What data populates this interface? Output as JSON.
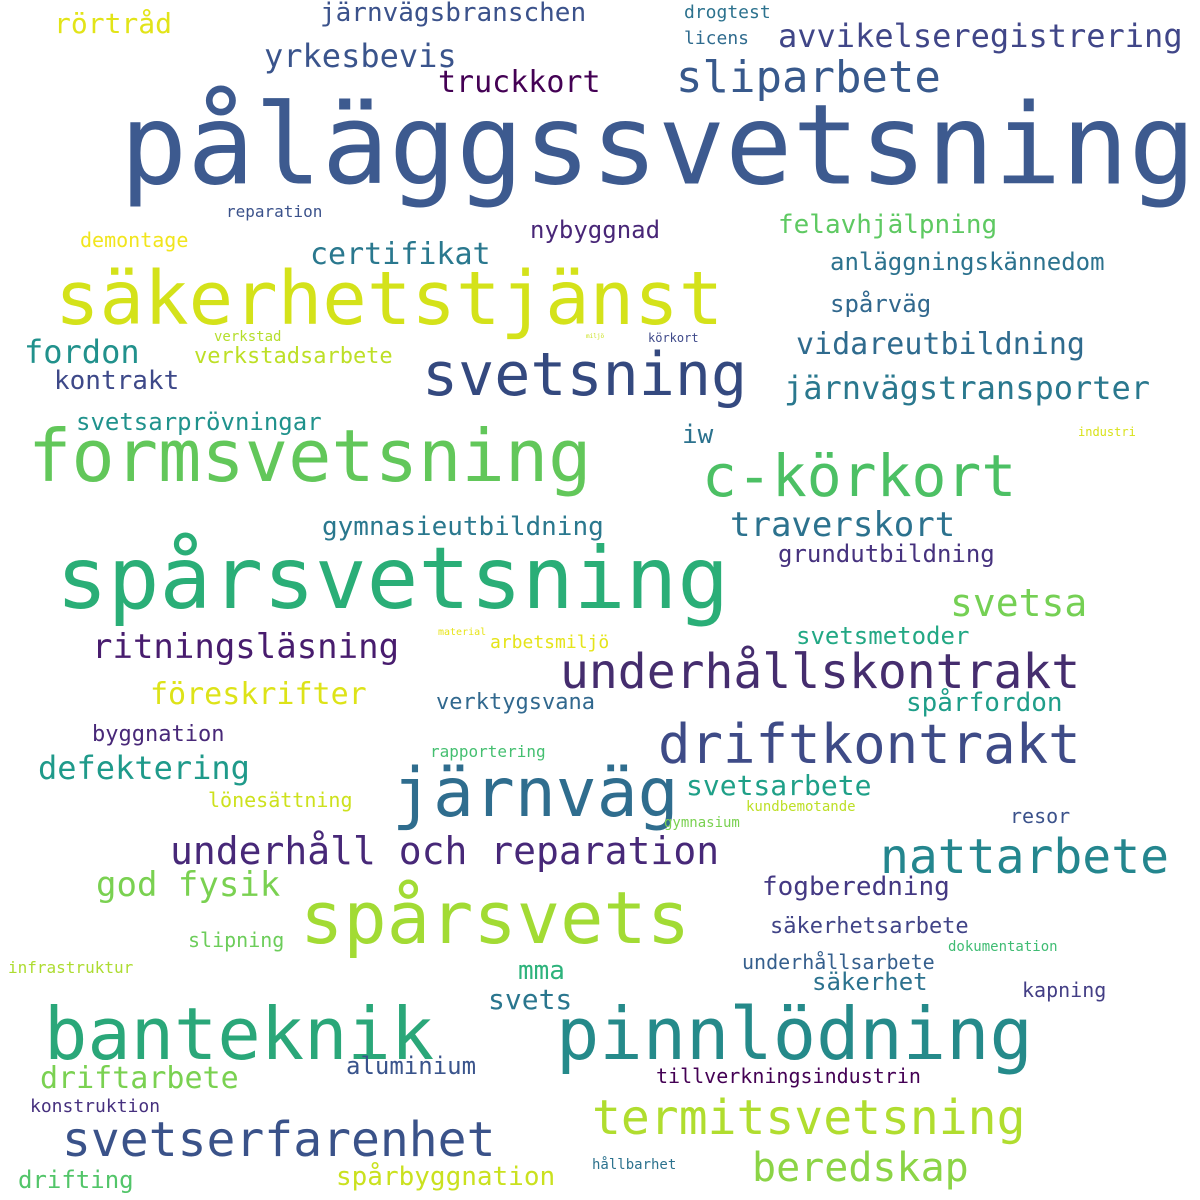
{
  "words": [
    {
      "text": "påläggssvetsning",
      "color": "#3d5a8f"
    },
    {
      "text": "säkerhetstjänst",
      "color": "#d4e21a"
    },
    {
      "text": "svetsning",
      "color": "#34497f"
    },
    {
      "text": "formsvetsning",
      "color": "#62c75a"
    },
    {
      "text": "c-körkort",
      "color": "#4cc064"
    },
    {
      "text": "spårsvetsning",
      "color": "#2aae77"
    },
    {
      "text": "underhållskontrakt",
      "color": "#452d6e"
    },
    {
      "text": "driftkontrakt",
      "color": "#3e4b87"
    },
    {
      "text": "järnväg",
      "color": "#2f6d8e"
    },
    {
      "text": "nattarbete",
      "color": "#24868e"
    },
    {
      "text": "spårsvets",
      "color": "#a2db34"
    },
    {
      "text": "banteknik",
      "color": "#2aa779"
    },
    {
      "text": "pinnlödning",
      "color": "#258a8a"
    },
    {
      "text": "svetserfarenhet",
      "color": "#3a5289"
    },
    {
      "text": "termitsvetsning",
      "color": "#b0dd2f"
    },
    {
      "text": "beredskap",
      "color": "#8bd446"
    },
    {
      "text": "sliparbete",
      "color": "#38598c"
    },
    {
      "text": "underhåll och reparation",
      "color": "#472878"
    },
    {
      "text": "svetsa",
      "color": "#75d054"
    },
    {
      "text": "ritningsläsning",
      "color": "#481c6e"
    },
    {
      "text": "järnvägstransporter",
      "color": "#2a788e"
    },
    {
      "text": "traverskort",
      "color": "#2c728e"
    },
    {
      "text": "vidareutbildning",
      "color": "#2f6b8e"
    },
    {
      "text": "yrkesbevis",
      "color": "#3a548c"
    },
    {
      "text": "avvikelseregistrering",
      "color": "#404688"
    },
    {
      "text": "järnvägsbranschen",
      "color": "#3b528b"
    },
    {
      "text": "truckkort",
      "color": "#440154"
    },
    {
      "text": "rörtråd",
      "color": "#e2e418"
    },
    {
      "text": "drogtest",
      "color": "#2c728e"
    },
    {
      "text": "licens",
      "color": "#2f6b8e"
    },
    {
      "text": "certifikat",
      "color": "#2a788e"
    },
    {
      "text": "fordon",
      "color": "#21918c"
    },
    {
      "text": "kontrakt",
      "color": "#3e4989"
    },
    {
      "text": "verkstadsarbete",
      "color": "#bddf26"
    },
    {
      "text": "svetsarprövningar",
      "color": "#20928c"
    },
    {
      "text": "felavhjälpning",
      "color": "#5ec962"
    },
    {
      "text": "anläggningskännedom",
      "color": "#2c728e"
    },
    {
      "text": "spårväg",
      "color": "#31688e"
    },
    {
      "text": "nybyggnad",
      "color": "#482677"
    },
    {
      "text": "demontage",
      "color": "#f1e51d"
    },
    {
      "text": "reparation",
      "color": "#3b528b"
    },
    {
      "text": "verkstad",
      "color": "#b5de2b"
    },
    {
      "text": "körkort",
      "color": "#3e4989"
    },
    {
      "text": "miljö",
      "color": "#cae11f"
    },
    {
      "text": "iw",
      "color": "#2c728e"
    },
    {
      "text": "industri",
      "color": "#d8e219"
    },
    {
      "text": "gymnasieutbildning",
      "color": "#2a788e"
    },
    {
      "text": "grundutbildning",
      "color": "#46327e"
    },
    {
      "text": "svetsmetoder",
      "color": "#22a884"
    },
    {
      "text": "föreskrifter",
      "color": "#dde318"
    },
    {
      "text": "arbetsmiljö",
      "color": "#e5e419"
    },
    {
      "text": "material",
      "color": "#e7e419"
    },
    {
      "text": "verktygsvana",
      "color": "#31688e"
    },
    {
      "text": "spårfordon",
      "color": "#1f9e89"
    },
    {
      "text": "byggnation",
      "color": "#482878"
    },
    {
      "text": "defektering",
      "color": "#1f9a8a"
    },
    {
      "text": "rapportering",
      "color": "#44bf70"
    },
    {
      "text": "lönesättning",
      "color": "#cde11d"
    },
    {
      "text": "svetsarbete",
      "color": "#1fa088"
    },
    {
      "text": "kundbemotande",
      "color": "#bddf26"
    },
    {
      "text": "gymnasium",
      "color": "#7ad151"
    },
    {
      "text": "resor",
      "color": "#3b528b"
    },
    {
      "text": "god fysik",
      "color": "#7ad151"
    },
    {
      "text": "fogberedning",
      "color": "#443983"
    },
    {
      "text": "säkerhetsarbete",
      "color": "#414487"
    },
    {
      "text": "slipning",
      "color": "#6ccd5a"
    },
    {
      "text": "dokumentation",
      "color": "#3fbc73"
    },
    {
      "text": "infrastruktur",
      "color": "#addc30"
    },
    {
      "text": "underhållsarbete",
      "color": "#355f8d"
    },
    {
      "text": "mma",
      "color": "#2eb37c"
    },
    {
      "text": "säkerhet",
      "color": "#2c728e"
    },
    {
      "text": "svets",
      "color": "#2a768e"
    },
    {
      "text": "kapning",
      "color": "#433e85"
    },
    {
      "text": "aluminium",
      "color": "#3a548c"
    },
    {
      "text": "driftarbete",
      "color": "#7ad151"
    },
    {
      "text": "tillverkningsindustrin",
      "color": "#440154"
    },
    {
      "text": "konstruktion",
      "color": "#46307e"
    },
    {
      "text": "spårbyggnation",
      "color": "#cae11f"
    },
    {
      "text": "drifting",
      "color": "#52c569"
    },
    {
      "text": "hållbarhet",
      "color": "#2c728e"
    }
  ]
}
